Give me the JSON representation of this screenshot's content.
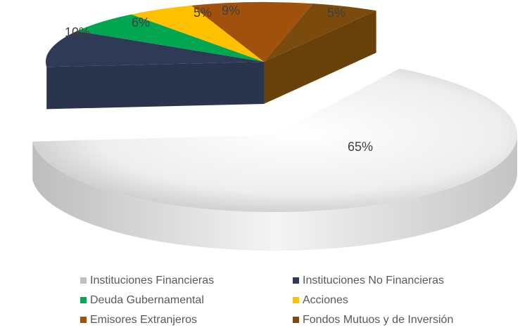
{
  "chart_data": {
    "type": "pie3d",
    "categories": [
      "Instituciones Financieras",
      "Instituciones No Financieras",
      "Deuda Gubernamental",
      "Acciones",
      "Emisores Extranjeros",
      "Fondos Mutuos y de Inversión"
    ],
    "values": [
      65,
      10,
      6,
      5,
      9,
      5
    ],
    "value_labels": [
      "65%",
      "10%",
      "6%",
      "5%",
      "9%",
      "5%"
    ],
    "colors": [
      "#d9d9d9",
      "#2f3a56",
      "#00a650",
      "#ffc000",
      "#a0520c",
      "#7a4b0c"
    ]
  }
}
